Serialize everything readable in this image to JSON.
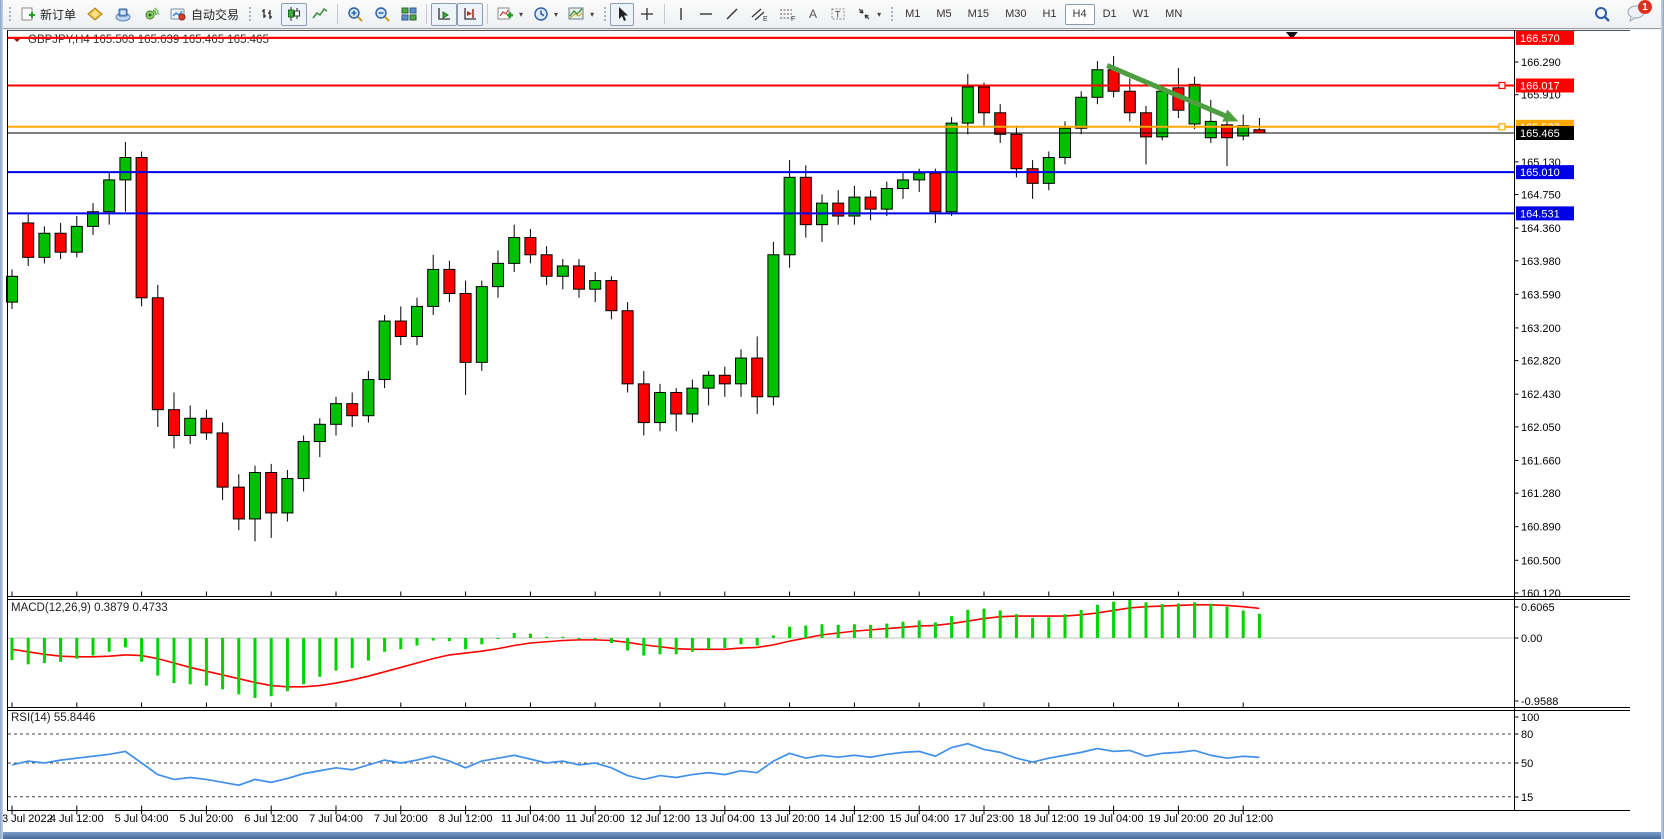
{
  "toolbar": {
    "new_order_label": "新订单",
    "autotrading_label": "自动交易",
    "timeframes": [
      "M1",
      "M5",
      "M15",
      "M30",
      "H1",
      "H4",
      "D1",
      "W1",
      "MN"
    ],
    "active_timeframe": "H4",
    "notification_count": "1"
  },
  "chart": {
    "title": "GBPJPY,H4  165.503 165.639 165.465 165.465",
    "symbol": "GBPJPY",
    "period": "H4",
    "open": "165.503",
    "high": "165.639",
    "low": "165.465",
    "close": "165.465"
  },
  "chart_data": {
    "type": "candlestick",
    "symbol": "GBPJPY",
    "timeframe": "H4",
    "x_labels": [
      "3 Jul 2022",
      "4 Jul 12:00",
      "5 Jul 04:00",
      "5 Jul 20:00",
      "6 Jul 12:00",
      "7 Jul 04:00",
      "7 Jul 20:00",
      "8 Jul 12:00",
      "11 Jul 04:00",
      "11 Jul 20:00",
      "12 Jul 12:00",
      "13 Jul 04:00",
      "13 Jul 20:00",
      "14 Jul 12:00",
      "15 Jul 04:00",
      "17 Jul 23:00",
      "18 Jul 12:00",
      "19 Jul 04:00",
      "19 Jul 20:00",
      "20 Jul 12:00"
    ],
    "bars_per_label": 4,
    "price_axis_ticks": [
      166.29,
      165.91,
      165.13,
      164.75,
      164.36,
      163.98,
      163.59,
      163.2,
      162.82,
      162.43,
      162.05,
      161.66,
      161.28,
      160.89,
      160.5,
      160.12
    ],
    "hlines": [
      {
        "price": 166.57,
        "label": "166.570",
        "color": "#ff0000",
        "width": 2,
        "handle": false
      },
      {
        "price": 166.017,
        "label": "166.017",
        "color": "#ff0000",
        "width": 2,
        "handle": true
      },
      {
        "price": 165.537,
        "label": "165.537",
        "color": "#ffa800",
        "width": 2,
        "handle": true
      },
      {
        "price": 165.01,
        "label": "165.010",
        "color": "#0000e8",
        "width": 2,
        "handle": false
      },
      {
        "price": 164.531,
        "label": "164.531",
        "color": "#0000e8",
        "width": 2,
        "handle": false
      }
    ],
    "bid_line": {
      "price": 165.465,
      "label": "165.465",
      "color": "#000000",
      "width": 1
    },
    "trend_arrow": {
      "from_bar": 67.6,
      "from_price": 166.25,
      "to_bar": 75.7,
      "to_price": 165.6,
      "color": "#4d9e3f"
    },
    "shift_marker_bar": 79,
    "candles": [
      [
        163.5,
        163.88,
        163.42,
        163.8
      ],
      [
        164.42,
        164.52,
        163.92,
        164.02
      ],
      [
        164.02,
        164.38,
        163.95,
        164.3
      ],
      [
        164.3,
        164.42,
        164.0,
        164.08
      ],
      [
        164.08,
        164.5,
        164.02,
        164.38
      ],
      [
        164.38,
        164.65,
        164.28,
        164.55
      ],
      [
        164.55,
        165.0,
        164.4,
        164.92
      ],
      [
        164.92,
        165.36,
        164.55,
        165.18
      ],
      [
        165.18,
        165.25,
        163.45,
        163.55
      ],
      [
        163.55,
        163.7,
        162.05,
        162.25
      ],
      [
        162.25,
        162.45,
        161.8,
        161.95
      ],
      [
        161.95,
        162.3,
        161.85,
        162.15
      ],
      [
        162.15,
        162.25,
        161.9,
        161.98
      ],
      [
        161.98,
        162.1,
        161.2,
        161.35
      ],
      [
        161.35,
        161.5,
        160.85,
        160.98
      ],
      [
        160.98,
        161.6,
        160.72,
        161.52
      ],
      [
        161.52,
        161.62,
        160.76,
        161.05
      ],
      [
        161.05,
        161.55,
        160.95,
        161.45
      ],
      [
        161.45,
        161.95,
        161.3,
        161.88
      ],
      [
        161.88,
        162.15,
        161.7,
        162.08
      ],
      [
        162.08,
        162.4,
        161.95,
        162.32
      ],
      [
        162.32,
        162.45,
        162.05,
        162.18
      ],
      [
        162.18,
        162.7,
        162.1,
        162.6
      ],
      [
        162.6,
        163.35,
        162.5,
        163.28
      ],
      [
        163.28,
        163.45,
        163.0,
        163.1
      ],
      [
        163.1,
        163.55,
        163.0,
        163.45
      ],
      [
        163.45,
        164.05,
        163.35,
        163.88
      ],
      [
        163.88,
        163.98,
        163.5,
        163.6
      ],
      [
        163.6,
        163.75,
        162.42,
        162.8
      ],
      [
        162.8,
        163.75,
        162.7,
        163.68
      ],
      [
        163.68,
        164.1,
        163.55,
        163.95
      ],
      [
        163.95,
        164.4,
        163.85,
        164.25
      ],
      [
        164.25,
        164.35,
        163.95,
        164.05
      ],
      [
        164.05,
        164.15,
        163.7,
        163.8
      ],
      [
        163.8,
        164.0,
        163.65,
        163.92
      ],
      [
        163.92,
        164.0,
        163.55,
        163.65
      ],
      [
        163.65,
        163.85,
        163.5,
        163.75
      ],
      [
        163.75,
        163.8,
        163.3,
        163.4
      ],
      [
        163.4,
        163.5,
        162.45,
        162.55
      ],
      [
        162.55,
        162.7,
        161.95,
        162.1
      ],
      [
        162.1,
        162.55,
        162.0,
        162.45
      ],
      [
        162.45,
        162.5,
        162.0,
        162.2
      ],
      [
        162.2,
        162.6,
        162.1,
        162.5
      ],
      [
        162.5,
        162.7,
        162.3,
        162.65
      ],
      [
        162.65,
        162.75,
        162.4,
        162.55
      ],
      [
        162.55,
        162.95,
        162.4,
        162.85
      ],
      [
        162.85,
        163.1,
        162.2,
        162.4
      ],
      [
        162.4,
        164.2,
        162.3,
        164.05
      ],
      [
        164.05,
        165.15,
        163.9,
        164.95
      ],
      [
        164.95,
        165.09,
        164.25,
        164.4
      ],
      [
        164.4,
        164.75,
        164.2,
        164.65
      ],
      [
        164.65,
        164.8,
        164.4,
        164.5
      ],
      [
        164.5,
        164.85,
        164.4,
        164.72
      ],
      [
        164.72,
        164.8,
        164.45,
        164.58
      ],
      [
        164.58,
        164.9,
        164.5,
        164.82
      ],
      [
        164.82,
        165.0,
        164.7,
        164.92
      ],
      [
        164.92,
        165.05,
        164.78,
        165.0
      ],
      [
        165.0,
        165.05,
        164.42,
        164.55
      ],
      [
        164.55,
        165.65,
        164.5,
        165.58
      ],
      [
        165.58,
        166.15,
        165.45,
        166.0
      ],
      [
        166.0,
        166.05,
        165.55,
        165.7
      ],
      [
        165.7,
        165.8,
        165.35,
        165.45
      ],
      [
        165.45,
        165.55,
        164.95,
        165.05
      ],
      [
        165.05,
        165.15,
        164.7,
        164.88
      ],
      [
        164.88,
        165.25,
        164.8,
        165.18
      ],
      [
        165.18,
        165.6,
        165.1,
        165.52
      ],
      [
        165.52,
        165.95,
        165.45,
        165.88
      ],
      [
        165.88,
        166.3,
        165.8,
        166.2
      ],
      [
        166.2,
        166.36,
        165.88,
        165.95
      ],
      [
        165.95,
        166.1,
        165.6,
        165.7
      ],
      [
        165.7,
        165.78,
        165.1,
        165.42
      ],
      [
        165.42,
        166.0,
        165.38,
        165.95
      ],
      [
        165.99,
        166.22,
        165.64,
        165.73
      ],
      [
        165.57,
        166.12,
        165.51,
        166.03
      ],
      [
        165.41,
        165.85,
        165.35,
        165.6
      ],
      [
        165.56,
        165.72,
        165.08,
        165.41
      ],
      [
        165.43,
        165.68,
        165.38,
        165.55
      ],
      [
        165.503,
        165.639,
        165.465,
        165.465
      ]
    ],
    "macd": {
      "label": "MACD(12,26,9) 0.3879 0.4733",
      "params": "12,26,9",
      "main_value": "0.3879",
      "signal_value": "0.4733",
      "scale_max": "0.6065",
      "scale_zero": "0.00",
      "scale_min": "-0.9588",
      "hist": [
        -0.35,
        -0.42,
        -0.4,
        -0.38,
        -0.33,
        -0.28,
        -0.22,
        -0.15,
        -0.38,
        -0.6,
        -0.72,
        -0.74,
        -0.76,
        -0.82,
        -0.9,
        -0.9588,
        -0.93,
        -0.85,
        -0.74,
        -0.62,
        -0.52,
        -0.48,
        -0.36,
        -0.22,
        -0.18,
        -0.12,
        -0.04,
        -0.05,
        -0.18,
        -0.1,
        0.0,
        0.08,
        0.07,
        0.02,
        0.02,
        -0.02,
        -0.02,
        -0.08,
        -0.2,
        -0.28,
        -0.26,
        -0.26,
        -0.22,
        -0.18,
        -0.16,
        -0.1,
        -0.12,
        0.04,
        0.18,
        0.2,
        0.22,
        0.21,
        0.22,
        0.21,
        0.23,
        0.26,
        0.28,
        0.25,
        0.35,
        0.45,
        0.47,
        0.44,
        0.38,
        0.32,
        0.33,
        0.38,
        0.45,
        0.53,
        0.58,
        0.6065,
        0.57,
        0.54,
        0.55,
        0.57,
        0.55,
        0.5,
        0.44,
        0.3879
      ],
      "signal": [
        -0.18,
        -0.22,
        -0.26,
        -0.29,
        -0.3,
        -0.3,
        -0.29,
        -0.27,
        -0.28,
        -0.33,
        -0.4,
        -0.47,
        -0.53,
        -0.59,
        -0.65,
        -0.71,
        -0.76,
        -0.78,
        -0.78,
        -0.76,
        -0.72,
        -0.67,
        -0.61,
        -0.54,
        -0.47,
        -0.4,
        -0.33,
        -0.27,
        -0.24,
        -0.21,
        -0.17,
        -0.12,
        -0.08,
        -0.06,
        -0.04,
        -0.03,
        -0.03,
        -0.04,
        -0.07,
        -0.11,
        -0.14,
        -0.17,
        -0.18,
        -0.18,
        -0.18,
        -0.16,
        -0.15,
        -0.11,
        -0.05,
        0.0,
        0.05,
        0.08,
        0.11,
        0.13,
        0.15,
        0.17,
        0.19,
        0.2,
        0.23,
        0.27,
        0.31,
        0.34,
        0.35,
        0.35,
        0.35,
        0.35,
        0.37,
        0.4,
        0.44,
        0.48,
        0.5,
        0.51,
        0.52,
        0.53,
        0.53,
        0.52,
        0.5,
        0.4733
      ]
    },
    "rsi": {
      "label": "RSI(14) 55.8446",
      "period": "14",
      "value": "55.8446",
      "scale_labels": [
        "100",
        "80",
        "50",
        "15"
      ],
      "levels": [
        80,
        50,
        15
      ],
      "values": [
        48,
        52,
        50,
        53,
        55,
        57,
        59,
        62,
        50,
        38,
        33,
        35,
        33,
        30,
        27,
        33,
        30,
        34,
        39,
        42,
        45,
        43,
        48,
        53,
        50,
        53,
        57,
        52,
        45,
        52,
        55,
        58,
        54,
        50,
        52,
        48,
        50,
        45,
        37,
        33,
        37,
        35,
        38,
        40,
        38,
        42,
        40,
        52,
        60,
        55,
        58,
        56,
        58,
        56,
        59,
        61,
        62,
        57,
        66,
        70,
        64,
        61,
        55,
        51,
        55,
        58,
        61,
        65,
        62,
        63,
        57,
        60,
        61,
        63,
        58,
        55,
        57,
        55.8
      ]
    },
    "colors": {
      "up": "#00c000",
      "down": "#ff0000",
      "outline": "#000000",
      "macd_hist": "#00d300",
      "macd_signal": "#ff0000",
      "rsi_line": "#4090e8",
      "axis_text": "#000000",
      "arrow": "#4d9e3f"
    }
  }
}
